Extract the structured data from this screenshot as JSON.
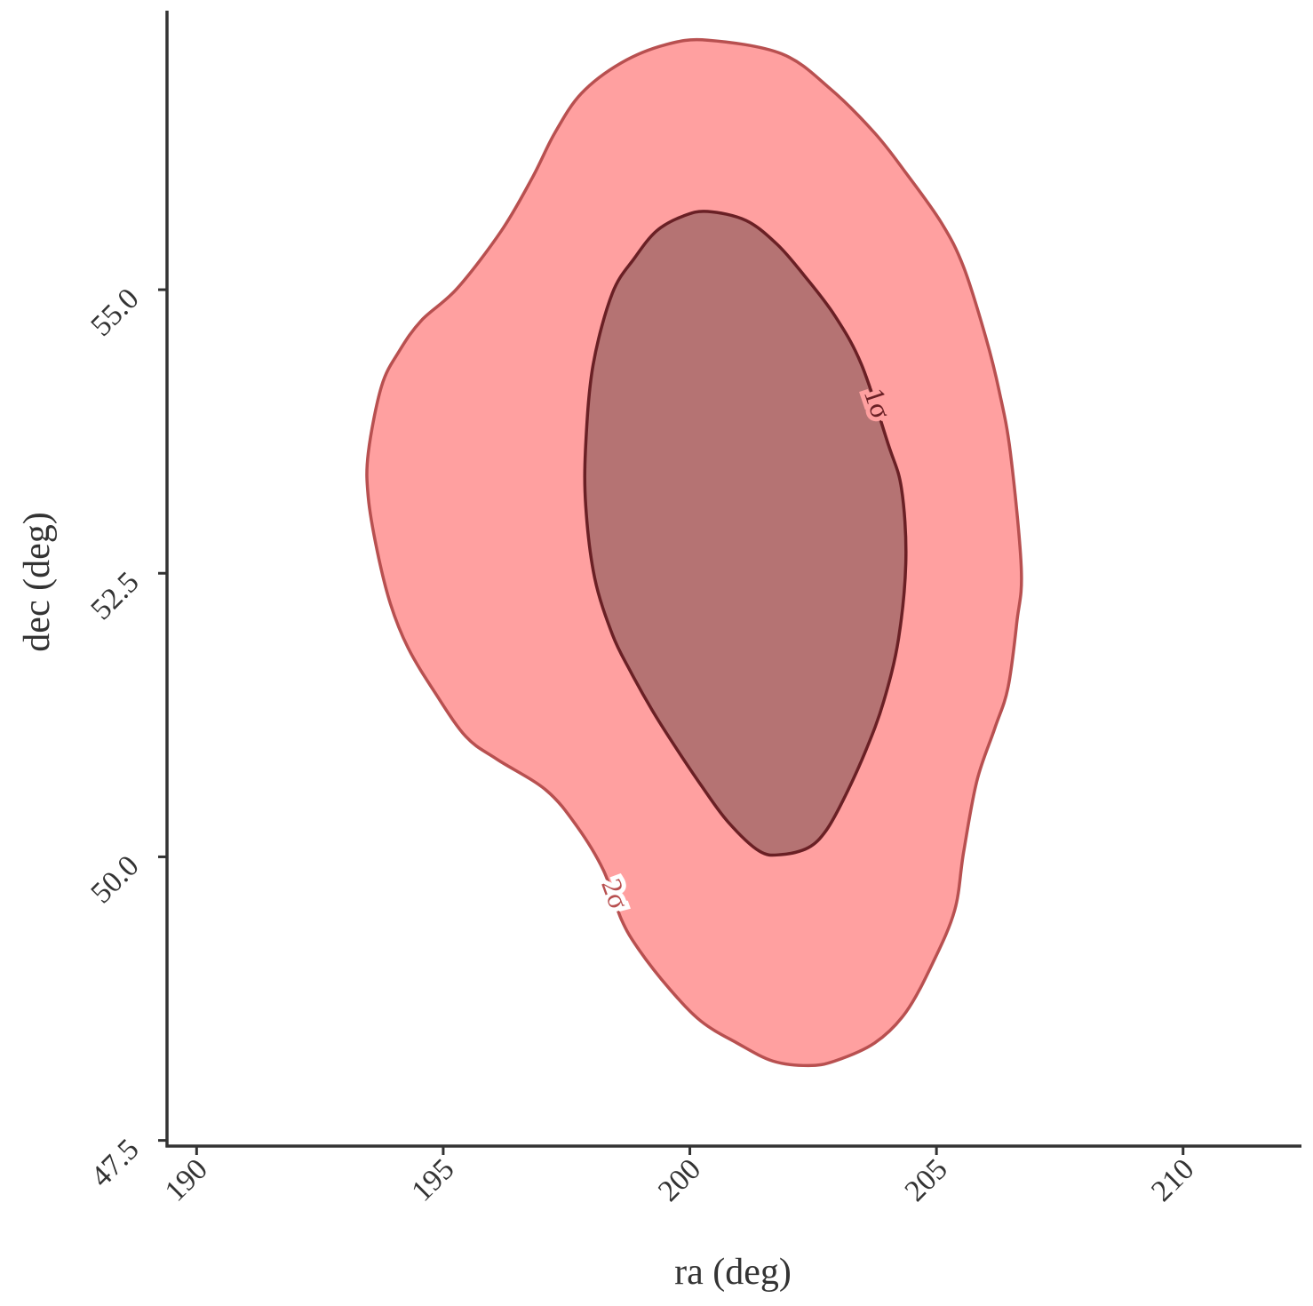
{
  "chart_data": {
    "type": "contour",
    "xlabel": "ra (deg)",
    "ylabel": "dec (deg)",
    "xlim": [
      189.4,
      212.4
    ],
    "ylim": [
      47.45,
      57.46
    ],
    "xticks": [
      190,
      195,
      200,
      205,
      210
    ],
    "yticks": [
      47.5,
      {
        "value": 50.0,
        "label": "50.0"
      },
      52.5,
      {
        "value": 55.0,
        "label": "55.0"
      }
    ],
    "contours": [
      {
        "label": "2σ",
        "color": "#ffa0a0",
        "edgecolor": "#b85050",
        "x": [
          200.36,
          201.86,
          202.85,
          203.75,
          204.38,
          205.1,
          205.55,
          206.0,
          206.27,
          206.5,
          206.72,
          206.63,
          206.45,
          206.18,
          205.82,
          205.55,
          205.37,
          204.92,
          204.38,
          203.75,
          202.94,
          202.4,
          201.68,
          200.95,
          200.23,
          199.6,
          198.97,
          198.61,
          198.25,
          197.71,
          197.08,
          196.09,
          195.46,
          194.83,
          194.29,
          193.93,
          193.66,
          193.48,
          193.48,
          193.75,
          194.11,
          194.56,
          195.28,
          196.18,
          196.81,
          197.26,
          197.8,
          198.61,
          199.51
        ],
        "y": [
          57.2,
          57.08,
          56.77,
          56.38,
          56.03,
          55.59,
          55.2,
          54.58,
          54.11,
          53.56,
          52.54,
          52.07,
          51.49,
          51.13,
          50.67,
          50.04,
          49.53,
          49.06,
          48.63,
          48.36,
          48.2,
          48.16,
          48.2,
          48.36,
          48.55,
          48.83,
          49.18,
          49.45,
          49.88,
          50.27,
          50.59,
          50.86,
          51.06,
          51.45,
          51.84,
          52.23,
          52.7,
          53.17,
          53.56,
          54.15,
          54.46,
          54.73,
          55.01,
          55.52,
          55.99,
          56.38,
          56.73,
          57.0,
          57.16
        ]
      },
      {
        "label": "1σ",
        "color": "#b57373",
        "edgecolor": "#6a2025",
        "x": [
          200.36,
          201.14,
          201.77,
          202.31,
          202.94,
          203.48,
          204.02,
          204.29,
          204.38,
          204.23,
          203.93,
          203.57,
          203.12,
          202.76,
          202.4,
          201.86,
          201.41,
          200.77,
          200.23,
          199.69,
          199.24,
          198.79,
          198.43,
          198.07,
          197.89,
          197.89,
          198.04,
          198.43,
          198.88,
          199.33,
          199.87
        ],
        "y": [
          55.69,
          55.61,
          55.4,
          55.13,
          54.77,
          54.34,
          53.64,
          53.25,
          52.62,
          51.92,
          51.37,
          50.94,
          50.51,
          50.23,
          50.08,
          50.02,
          50.05,
          50.31,
          50.63,
          50.98,
          51.29,
          51.64,
          51.96,
          52.46,
          53.09,
          53.64,
          54.34,
          54.97,
          55.28,
          55.52,
          55.65
        ]
      }
    ]
  }
}
